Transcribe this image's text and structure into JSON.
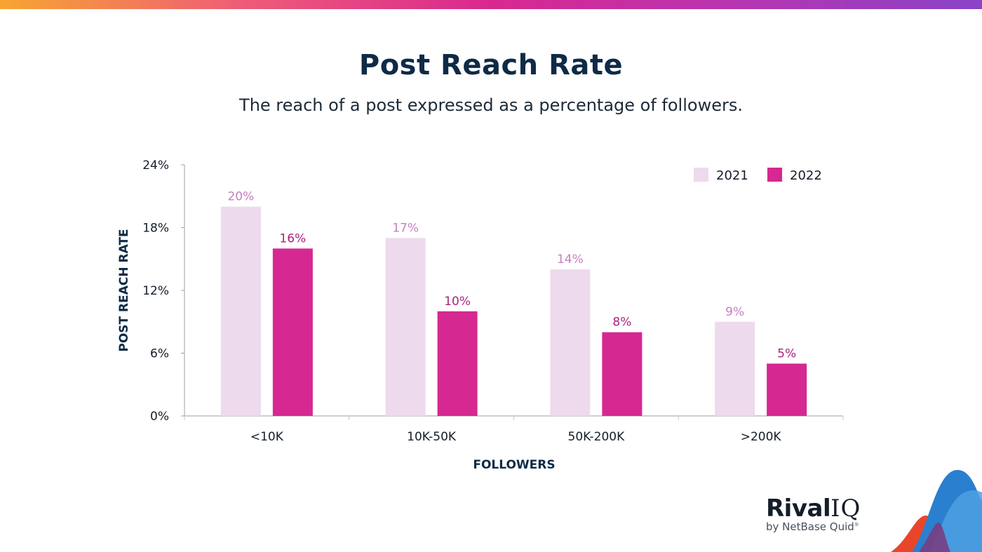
{
  "header": {
    "title": "Post Reach Rate",
    "subtitle": "The reach of a post expressed as a percentage of followers."
  },
  "colors": {
    "series_2021": "#eddaec",
    "series_2022": "#d62891",
    "label_2021": "#c580c0",
    "label_2022": "#a8237c",
    "title": "#0e2b46",
    "axis_text": "#151d2a"
  },
  "chart_data": {
    "type": "bar",
    "xlabel": "FOLLOWERS",
    "ylabel": "POST REACH RATE",
    "ylim": [
      0,
      24
    ],
    "yticks": [
      0,
      6,
      12,
      18,
      24
    ],
    "ytick_labels": [
      "0%",
      "6%",
      "12%",
      "18%",
      "24%"
    ],
    "categories": [
      "<10K",
      "10K-50K",
      "50K-200K",
      ">200K"
    ],
    "legend_position": "top-right",
    "grid": false,
    "series": [
      {
        "name": "2021",
        "values": [
          20,
          17,
          14,
          9
        ],
        "labels": [
          "20%",
          "17%",
          "14%",
          "9%"
        ]
      },
      {
        "name": "2022",
        "values": [
          16,
          10,
          8,
          5
        ],
        "labels": [
          "16%",
          "10%",
          "8%",
          "5%"
        ]
      }
    ]
  },
  "brand": {
    "logo_word": "Rival",
    "logo_iq": "IQ",
    "logo_sub": "by NetBase Quid",
    "logo_mark": "®"
  }
}
